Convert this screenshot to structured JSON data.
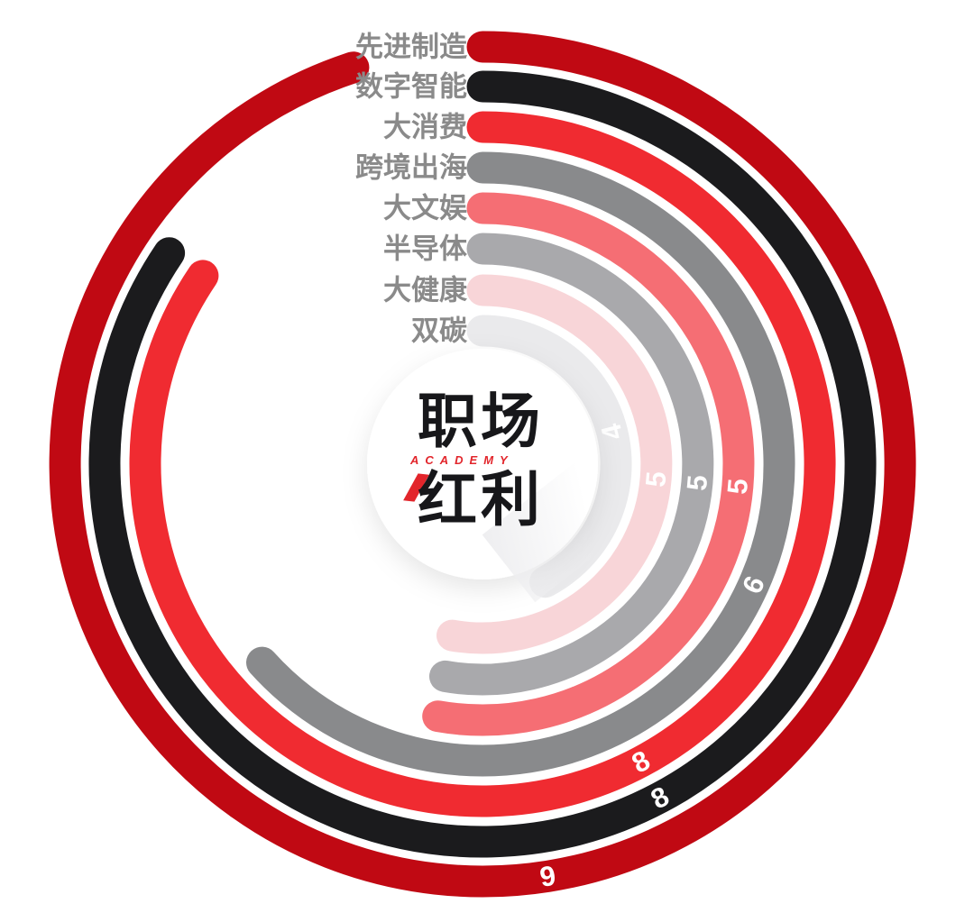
{
  "page": {
    "background_color": "#ffffff"
  },
  "chart_data": {
    "type": "radial-bar",
    "categories": [
      "先进制造",
      "数字智能",
      "大消费",
      "跨境出海",
      "大文娱",
      "半导体",
      "大健康",
      "双碳"
    ],
    "values": [
      9,
      8,
      8,
      6,
      5,
      5,
      5,
      4
    ],
    "series": [
      {
        "name": "先进制造",
        "value": 9,
        "color": "#c00913"
      },
      {
        "name": "数字智能",
        "value": 8,
        "color": "#1b1b1d"
      },
      {
        "name": "大消费",
        "value": 8,
        "color": "#f02b31"
      },
      {
        "name": "跨境出海",
        "value": 6,
        "color": "#898a8c"
      },
      {
        "name": "大文娱",
        "value": 5,
        "color": "#f56e74"
      },
      {
        "name": "半导体",
        "value": 5,
        "color": "#a9a9ac"
      },
      {
        "name": "大健康",
        "value": 5,
        "color": "#f8d5d8"
      },
      {
        "name": "双碳",
        "value": 4,
        "color": "#eaeaec"
      }
    ],
    "scale": {
      "degrees_per_unit": 38,
      "start_angle_deg": 0,
      "direction": "clockwise"
    },
    "value_label_color": "#ffffff",
    "category_label_color": "#8a8a8a",
    "grid": "off",
    "legend": "category labels at ring starts, top left of each arc"
  },
  "logo": {
    "line1": "职场",
    "subtitle": "ACADEMY",
    "line2": "红利",
    "text_color": "#17171a",
    "accent_color": "#e2252b"
  }
}
